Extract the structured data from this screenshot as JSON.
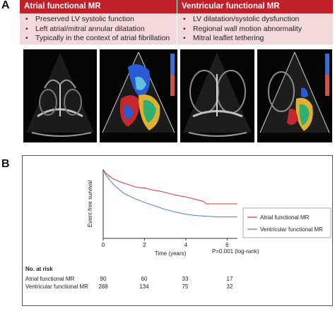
{
  "panel_a": {
    "letter": "A",
    "atrial": {
      "title": "Atrial functional MR",
      "bullets": [
        "Preserved LV systolic function",
        "Left atrial/mitral annular dilatation",
        "Typically in the context of atrial fibrillation"
      ]
    },
    "ventricular": {
      "title": "Ventricular functional MR",
      "bullets": [
        "LV dilatation/systolic dysfunction",
        "Regional wall motion abnormality",
        "Mitral leaflet tethering"
      ]
    }
  },
  "panel_b": {
    "letter": "B",
    "pvalue": "P=0.001 (log-rank)",
    "risk": {
      "title": "No. at risk",
      "rows": [
        {
          "label": "Atrial functional MR",
          "values": [
            "90",
            "60",
            "33",
            "17"
          ]
        },
        {
          "label": "Ventricular functional MR",
          "values": [
            "288",
            "134",
            "75",
            "32"
          ]
        }
      ]
    }
  },
  "chart_data": {
    "type": "line",
    "xlabel": "Time (years)",
    "ylabel": "Event-free survival",
    "xlim": [
      0,
      6.5
    ],
    "ylim": [
      0,
      1.0
    ],
    "xticks": [
      "0",
      "2",
      "4",
      "6"
    ],
    "legend_position": "right",
    "series": [
      {
        "name": "Atrial functional MR",
        "color": "#d9343a",
        "points": [
          [
            0,
            1.0
          ],
          [
            0.1,
            0.95
          ],
          [
            0.3,
            0.9
          ],
          [
            0.5,
            0.86
          ],
          [
            0.8,
            0.82
          ],
          [
            1.2,
            0.78
          ],
          [
            1.6,
            0.74
          ],
          [
            2.0,
            0.73
          ],
          [
            2.4,
            0.7
          ],
          [
            2.8,
            0.68
          ],
          [
            3.2,
            0.65
          ],
          [
            3.6,
            0.62
          ],
          [
            4.0,
            0.6
          ],
          [
            4.4,
            0.57
          ],
          [
            4.8,
            0.54
          ],
          [
            5.0,
            0.5
          ],
          [
            5.5,
            0.5
          ],
          [
            6.5,
            0.5
          ]
        ]
      },
      {
        "name": "Ventricular functional MR",
        "color": "#4a7ed1",
        "points": [
          [
            0,
            1.0
          ],
          [
            0.1,
            0.93
          ],
          [
            0.3,
            0.85
          ],
          [
            0.5,
            0.78
          ],
          [
            0.8,
            0.7
          ],
          [
            1.0,
            0.65
          ],
          [
            1.5,
            0.58
          ],
          [
            2.0,
            0.52
          ],
          [
            2.5,
            0.47
          ],
          [
            3.0,
            0.42
          ],
          [
            3.5,
            0.38
          ],
          [
            4.0,
            0.35
          ],
          [
            4.5,
            0.33
          ],
          [
            5.0,
            0.32
          ],
          [
            5.5,
            0.31
          ],
          [
            6.5,
            0.31
          ]
        ]
      }
    ]
  },
  "colors": {
    "header_red": "#c0202a",
    "body_pink": "#f3d9d9",
    "atrial_line": "#d9343a",
    "ventricular_line": "#4a7ed1"
  }
}
